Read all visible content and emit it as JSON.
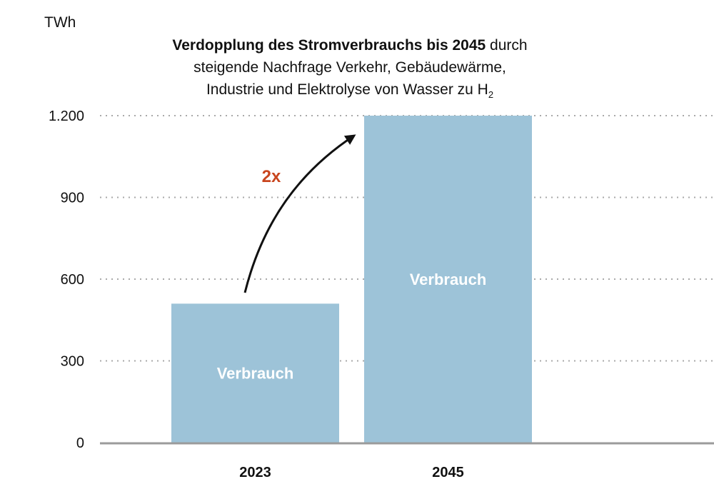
{
  "colors": {
    "bar": "#9dc3d8",
    "grid": "#a9a9a9",
    "axis": "#9b9b9b",
    "annotation": "#c9461f",
    "arrow": "#111111"
  },
  "title": {
    "bold": "Verdopplung des Stromverbrauchs bis 2045",
    "line1_rest": " durch",
    "line2": "steigende Nachfrage Verkehr, Gebäudewärme,",
    "line3": "Industrie und Elektrolyse von Wasser zu H",
    "subscript": "2"
  },
  "chart_data": {
    "type": "bar",
    "title": "Verdopplung des Stromverbrauchs bis 2045 durch steigende Nachfrage Verkehr, Gebäudewärme, Industrie und Elektrolyse von Wasser zu H2",
    "ylabel": "TWh",
    "xlabel": "",
    "categories": [
      "2023",
      "2045"
    ],
    "series": [
      {
        "name": "Verbrauch",
        "values": [
          510,
          1200
        ]
      }
    ],
    "ylim": [
      0,
      1200
    ],
    "yticks": [
      0,
      300,
      600,
      900,
      1200
    ],
    "ytick_labels": [
      "0",
      "300",
      "600",
      "900",
      "1.200"
    ],
    "grid": "dotted horizontal",
    "bar_labels": [
      "Verbrauch",
      "Verbrauch"
    ],
    "annotation": "2x"
  }
}
